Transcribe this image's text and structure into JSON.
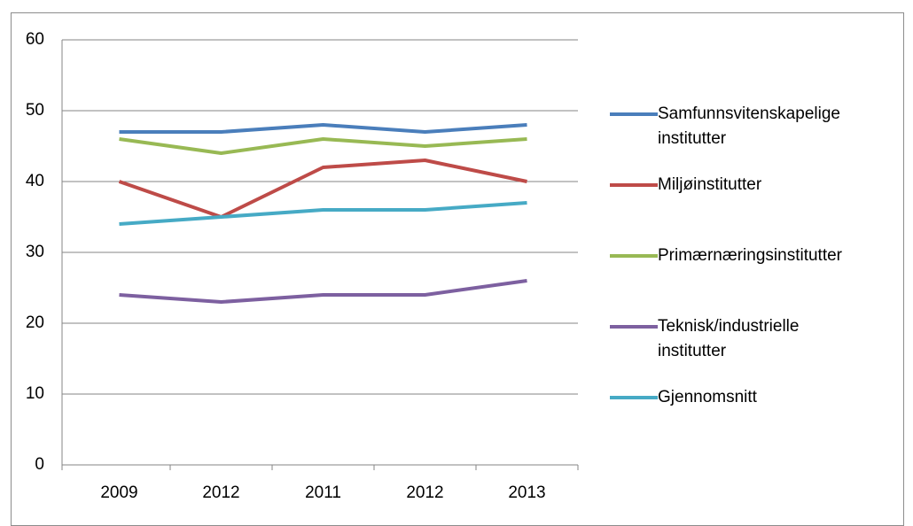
{
  "chart_data": {
    "type": "line",
    "categories": [
      "2009",
      "2012",
      "2011",
      "2012",
      "2013"
    ],
    "series": [
      {
        "name": "Samfunnsvitenskapelige institutter",
        "color": "#4a7ebb",
        "values": [
          47,
          47,
          48,
          47,
          48
        ]
      },
      {
        "name": "Miljøinstitutter",
        "color": "#be4b48",
        "values": [
          40,
          35,
          42,
          43,
          40
        ]
      },
      {
        "name": "Primærnæringsinstitutter",
        "color": "#98b954",
        "values": [
          46,
          44,
          46,
          45,
          46
        ]
      },
      {
        "name": "Teknisk/industrielle institutter",
        "color": "#7d60a0",
        "values": [
          24,
          23,
          24,
          24,
          26
        ]
      },
      {
        "name": "Gjennomsnitt",
        "color": "#46aac5",
        "values": [
          34,
          35,
          36,
          36,
          37
        ]
      }
    ],
    "ylim": [
      0,
      60
    ],
    "yticks": [
      0,
      10,
      20,
      30,
      40,
      50,
      60
    ],
    "grid": true,
    "legend": "right"
  }
}
